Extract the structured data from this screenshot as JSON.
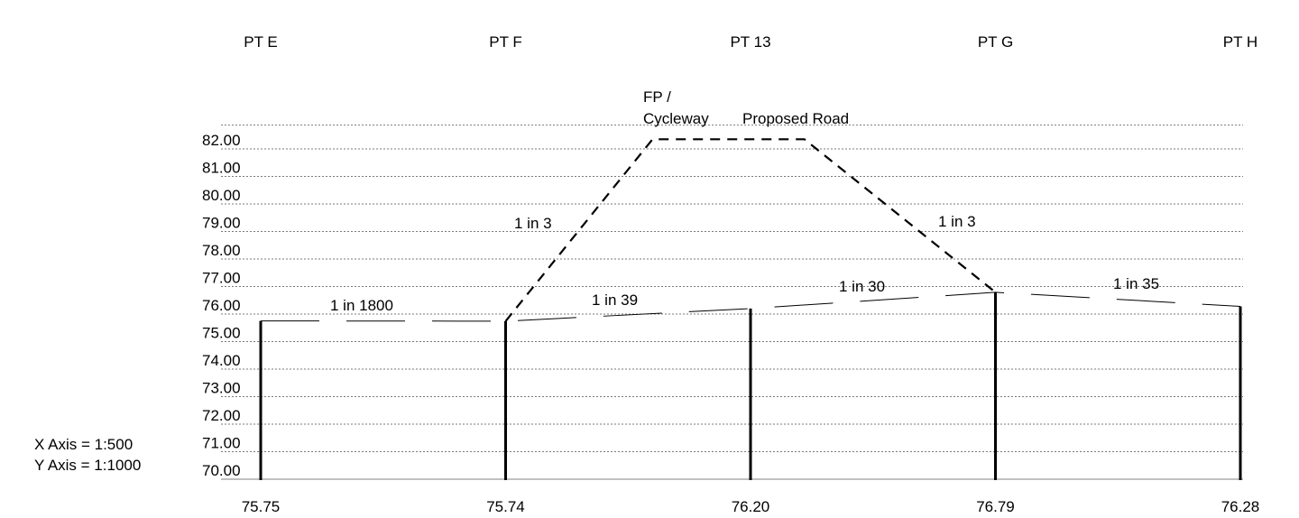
{
  "chart_data": {
    "type": "line",
    "points": [
      {
        "label": "PT E",
        "chainage": 0,
        "level": 75.75,
        "level_label": "75.75"
      },
      {
        "label": "PT  F",
        "chainage": 1,
        "level": 75.74,
        "level_label": "75.74"
      },
      {
        "label": "PT 13",
        "chainage": 2,
        "level": 76.2,
        "level_label": "76.20"
      },
      {
        "label": "PT G",
        "chainage": 3,
        "level": 76.79,
        "level_label": "76.79"
      },
      {
        "label": "PT H",
        "chainage": 4,
        "level": 76.28,
        "level_label": "76.28"
      }
    ],
    "y_ticks": [
      {
        "value": 70,
        "label": "70.00"
      },
      {
        "value": 71,
        "label": "71.00"
      },
      {
        "value": 72,
        "label": "72.00"
      },
      {
        "value": 73,
        "label": "73.00"
      },
      {
        "value": 74,
        "label": "74.00"
      },
      {
        "value": 75,
        "label": "75.00"
      },
      {
        "value": 76,
        "label": "76.00"
      },
      {
        "value": 77,
        "label": "77.00"
      },
      {
        "value": 78,
        "label": "78.00"
      },
      {
        "value": 79,
        "label": "79.00"
      },
      {
        "value": 80,
        "label": "80.00"
      },
      {
        "value": 81,
        "label": "81.00"
      },
      {
        "value": 82,
        "label": "82.00"
      }
    ],
    "ylim": [
      70,
      82.7
    ],
    "grid": true,
    "proposed_road": {
      "points": [
        {
          "chainage": 1,
          "level": 75.74
        },
        {
          "chainage": 1.6,
          "level": 82.35
        },
        {
          "chainage": 2.22,
          "level": 82.35
        },
        {
          "chainage": 3,
          "level": 76.79
        }
      ]
    },
    "gradients": [
      {
        "label": "1 in 1800"
      },
      {
        "label": "1 in 39"
      },
      {
        "label": "1 in 30"
      },
      {
        "label": "1 in 35"
      },
      {
        "label": "1 in 3"
      },
      {
        "label": "1 in 3"
      }
    ],
    "annotations": {
      "fp_line1": "FP /",
      "fp_line2": "Cycleway",
      "proposed_road": "Proposed Road"
    },
    "scale_note": {
      "x_axis": "X Axis = 1:500",
      "y_axis": "Y Axis = 1:1000"
    }
  }
}
